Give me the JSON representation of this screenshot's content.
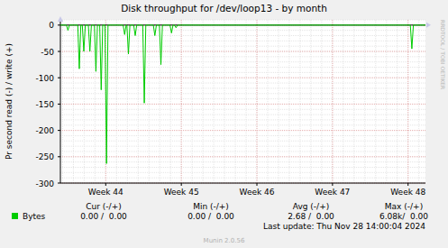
{
  "chart_data": {
    "type": "line",
    "title": "Disk throughput for /dev/loop13 - by month",
    "y_label": "Pr second read (-) / write (+)",
    "x": [
      43.4,
      43.48,
      43.5,
      43.52,
      43.63,
      43.65,
      43.67,
      43.69,
      43.71,
      43.73,
      43.77,
      43.79,
      43.81,
      43.85,
      43.87,
      43.89,
      43.92,
      43.94,
      43.96,
      43.99,
      44.01,
      44.03,
      44.23,
      44.25,
      44.27,
      44.28,
      44.3,
      44.32,
      44.37,
      44.39,
      44.41,
      44.49,
      44.51,
      44.53,
      44.63,
      44.65,
      44.67,
      44.71,
      44.73,
      44.75,
      44.85,
      44.87,
      44.89,
      44.91,
      44.93,
      44.95,
      48.03,
      48.05,
      48.07,
      48.23
    ],
    "series": [
      {
        "name": "Bytes",
        "color": "#00cc00",
        "values": [
          0,
          0,
          -10,
          0,
          0,
          -83,
          0,
          0,
          -50,
          0,
          0,
          -50,
          0,
          0,
          -88,
          0,
          0,
          -123,
          0,
          0,
          -263,
          0,
          0,
          -18,
          0,
          0,
          -55,
          0,
          0,
          -20,
          0,
          0,
          -148,
          0,
          0,
          -20,
          0,
          0,
          -75,
          0,
          0,
          -15,
          0,
          0,
          -5,
          0,
          0,
          -45,
          0,
          0
        ]
      }
    ],
    "xlim": [
      43.4,
      48.23
    ],
    "xticks": [
      {
        "value": 44,
        "label": "Week 44"
      },
      {
        "value": 45,
        "label": "Week 45"
      },
      {
        "value": 46,
        "label": "Week 46"
      },
      {
        "value": 47,
        "label": "Week 47"
      },
      {
        "value": 48,
        "label": "Week 48"
      }
    ],
    "ylim": [
      -300,
      10
    ],
    "yticks": [
      0,
      -50,
      -100,
      -150,
      -200,
      -250,
      -300
    ],
    "grid": true,
    "stats": {
      "headers": [
        "Cur (-/+)",
        "Min (-/+)",
        "Avg (-/+)",
        "Max (-/+)"
      ],
      "values": [
        "0.00 /  0.00",
        "0.00 /  0.00",
        "2.68 /  0.00",
        "6.08k/  0.00"
      ]
    },
    "last_update": "Last update: Thu Nov 28 14:00:04 2024",
    "footer": "Munin 2.0.56",
    "watermark": "RRDTOOL / TOBI OETIKER"
  }
}
